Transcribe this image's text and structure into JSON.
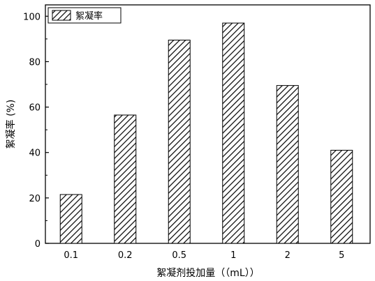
{
  "chart_data": {
    "type": "bar",
    "categories": [
      "0.1",
      "0.2",
      "0.5",
      "1",
      "2",
      "5"
    ],
    "series": [
      {
        "name": "絮凝率",
        "values": [
          21.5,
          56.5,
          89.5,
          97,
          69.5,
          41
        ]
      }
    ],
    "xlabel": "絮凝剂投加量（（mL））",
    "ylabel": "絮凝率 (%)",
    "ylim": [
      0,
      105
    ],
    "yticks": [
      "0",
      "20",
      "40",
      "60",
      "80",
      "100"
    ],
    "grid": false,
    "legend_position": "top-left",
    "bar_pattern": "diagonal-hatch"
  }
}
